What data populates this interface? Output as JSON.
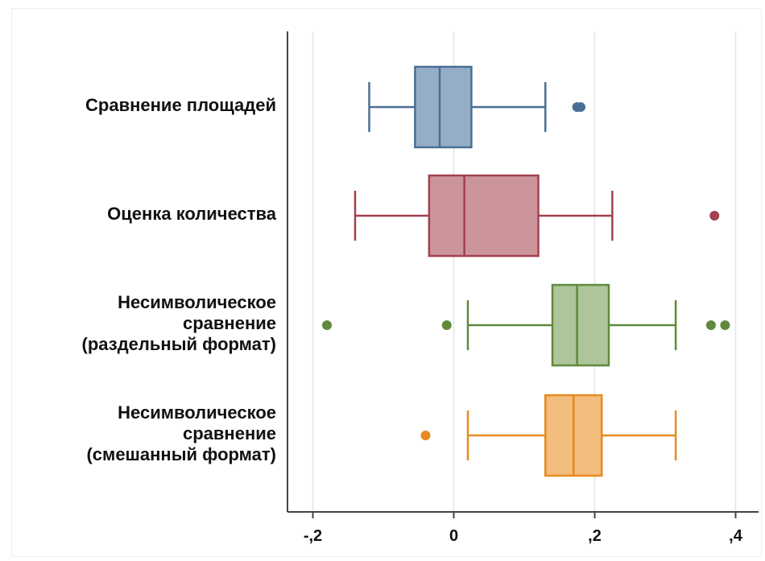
{
  "chart_data": {
    "type": "box",
    "orientation": "horizontal",
    "xlim": [
      -0.21,
      0.42
    ],
    "x_ticks": [
      -0.2,
      0,
      0.2,
      0.4
    ],
    "x_tick_labels": [
      "-,2",
      "0",
      ",2",
      ",4"
    ],
    "grid": "vertical",
    "series": [
      {
        "label": "Сравнение площадей",
        "color": "#4a6f96",
        "fill": "#95aec7",
        "whisker_low": -0.12,
        "q1": -0.055,
        "median": -0.02,
        "q3": 0.025,
        "whisker_high": 0.13,
        "outliers": [
          0.175,
          0.18
        ]
      },
      {
        "label": "Оценка количества",
        "color": "#a3404e",
        "fill": "#cc959c",
        "whisker_low": -0.14,
        "q1": -0.035,
        "median": 0.015,
        "q3": 0.12,
        "whisker_high": 0.225,
        "outliers": [
          0.37
        ]
      },
      {
        "label": "Несимволическое\nсравнение\n(раздельный формат)",
        "color": "#5f8a3b",
        "fill": "#aec59a",
        "whisker_low": 0.02,
        "q1": 0.14,
        "median": 0.175,
        "q3": 0.22,
        "whisker_high": 0.315,
        "outliers": [
          -0.18,
          -0.01,
          0.365,
          0.385
        ]
      },
      {
        "label": "Несимволическое\nсравнение\n(смешанный формат)",
        "color": "#e88a1f",
        "fill": "#f2bd7d",
        "whisker_low": 0.02,
        "q1": 0.13,
        "median": 0.17,
        "q3": 0.21,
        "whisker_high": 0.315,
        "outliers": [
          -0.04
        ]
      }
    ]
  }
}
